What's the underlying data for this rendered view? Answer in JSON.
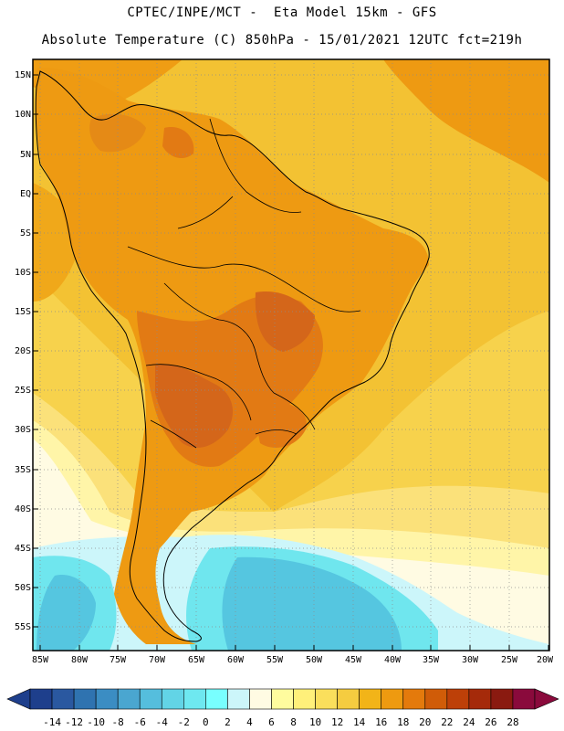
{
  "header": {
    "line1": "CPTEC/INPE/MCT -  Eta Model 15km - GFS",
    "line2": "Absolute Temperature (C) 850hPa - 15/01/2021 12UTC fct=219h"
  },
  "axes": {
    "lat_labels": [
      "15N",
      "10N",
      "5N",
      "EQ",
      "5S",
      "10S",
      "15S",
      "20S",
      "25S",
      "30S",
      "35S",
      "40S",
      "45S",
      "50S",
      "55S"
    ],
    "lon_labels": [
      "85W",
      "80W",
      "75W",
      "70W",
      "65W",
      "60W",
      "55W",
      "50W",
      "45W",
      "40W",
      "35W",
      "30W",
      "25W",
      "20W"
    ]
  },
  "colorbar": {
    "labels": [
      "-14",
      "-12",
      "-10",
      "-8",
      "-6",
      "-4",
      "-2",
      "0",
      "2",
      "4",
      "6",
      "8",
      "10",
      "12",
      "14",
      "16",
      "18",
      "20",
      "22",
      "24",
      "26",
      "28"
    ],
    "colors": [
      "#1e3f8c",
      "#2a58a0",
      "#2f73b0",
      "#3b8dc3",
      "#4aa6d0",
      "#55bedd",
      "#62d4e6",
      "#6ee8f0",
      "#78ffff",
      "#ccf6fa",
      "#fffbe3",
      "#fffc9e",
      "#fff07a",
      "#fadf5c",
      "#f5cc40",
      "#f2b418",
      "#ee9a10",
      "#e47a0c",
      "#d05c08",
      "#bd4008",
      "#a52a0a",
      "#8a1a10",
      "#8a0a3c"
    ]
  },
  "map": {
    "region": "South America",
    "variable": "temperature_850hPa_C",
    "palette": {
      "ocean": "#f2be2e",
      "land": "#ee9a12",
      "hot": "#d96a1a",
      "cold": "#4ec6e0",
      "outline": "#000000",
      "grid": "#888888"
    }
  }
}
